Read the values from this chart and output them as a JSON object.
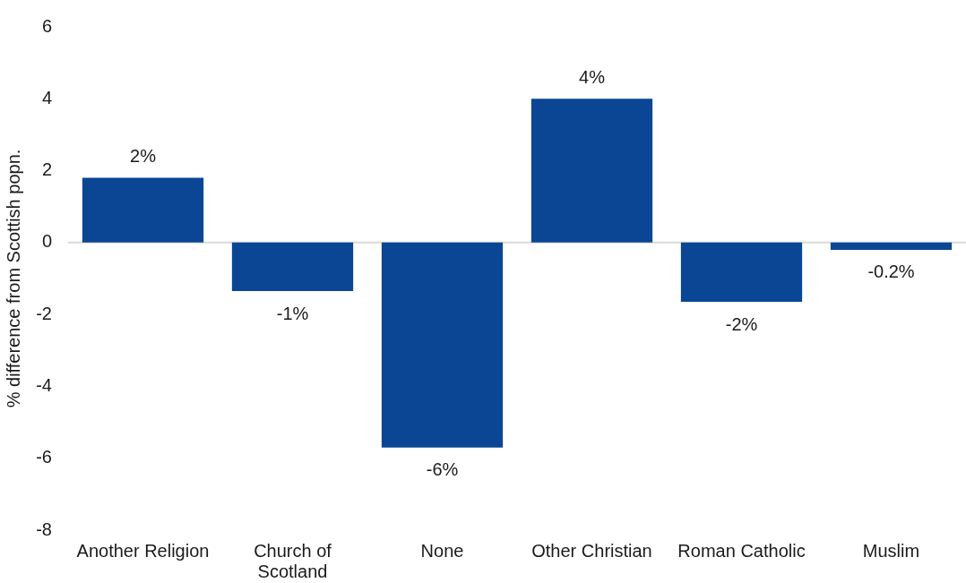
{
  "chart_data": {
    "type": "bar",
    "ylabel": "% difference from Scottish popn.",
    "categories": [
      "Another Religion",
      "Church of Scotland",
      "None",
      "Other Christian",
      "Roman Catholic",
      "Muslim"
    ],
    "values": [
      1.8,
      -1.35,
      -5.7,
      4.0,
      -1.65,
      -0.2
    ],
    "value_labels": [
      "2%",
      "-1%",
      "-6%",
      "4%",
      "-2%",
      "-0.2%"
    ],
    "color": "#0a4694",
    "ylim": [
      -8,
      6
    ],
    "yticks": [
      -8,
      -6,
      -4,
      -2,
      0,
      2,
      4,
      6
    ]
  }
}
